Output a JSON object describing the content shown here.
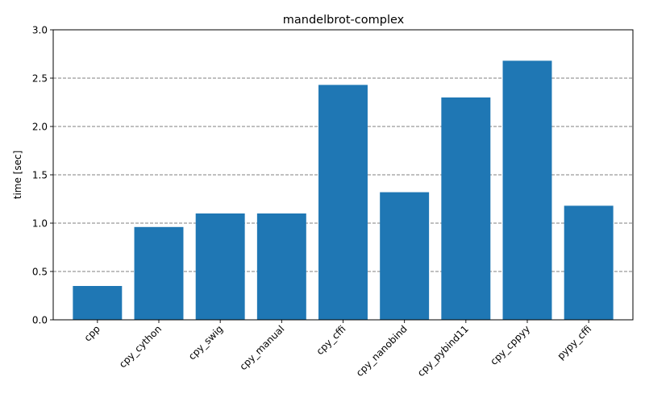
{
  "chart_data": {
    "type": "bar",
    "title": "mandelbrot-complex",
    "xlabel": "",
    "ylabel": "time [sec]",
    "categories": [
      "cpp",
      "cpy_cython",
      "cpy_swig",
      "cpy_manual",
      "cpy_cffi",
      "cpy_nanobind",
      "cpy_pybind11",
      "cpy_cppyy",
      "pypy_cffi"
    ],
    "values": [
      0.35,
      0.96,
      1.1,
      1.1,
      2.43,
      1.32,
      2.3,
      2.68,
      1.18
    ],
    "ylim": [
      0,
      3.0
    ],
    "yticks": [
      "0.0",
      "0.5",
      "1.0",
      "1.5",
      "2.0",
      "2.5",
      "3.0"
    ],
    "grid": "y-dashed",
    "bar_color": "#1f77b4",
    "grid_color": "#808080"
  }
}
